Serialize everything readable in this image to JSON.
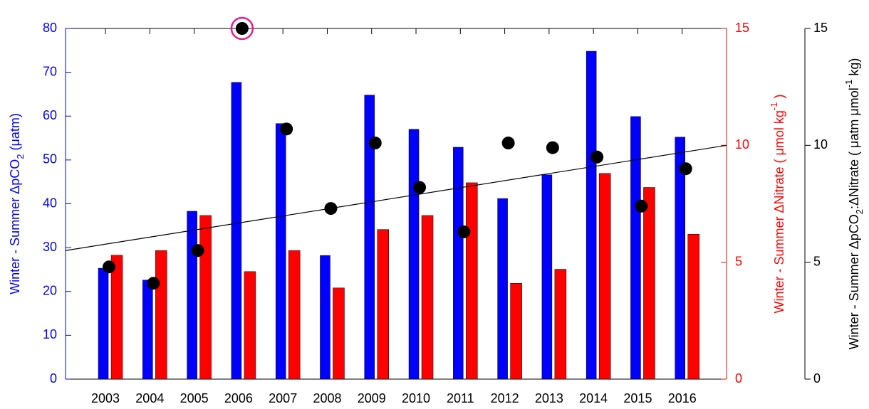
{
  "chart_data": {
    "type": "bar",
    "x": [
      2003,
      2004,
      2005,
      2006,
      2007,
      2008,
      2009,
      2010,
      2011,
      2012,
      2013,
      2014,
      2015,
      2016
    ],
    "xlim": [
      2002.1,
      2017
    ],
    "xticks": [
      2003,
      2004,
      2005,
      2006,
      2007,
      2008,
      2009,
      2010,
      2011,
      2012,
      2013,
      2014,
      2015,
      2016
    ],
    "ylim": [
      0,
      80
    ],
    "yticks": [
      0,
      10,
      20,
      30,
      40,
      50,
      60,
      70,
      80
    ],
    "y2lim": [
      0,
      15
    ],
    "y2ticks": [
      0,
      5,
      10,
      15
    ],
    "y3lim": [
      0,
      15
    ],
    "y3ticks": [
      0,
      5,
      10,
      15
    ],
    "ylabel": [
      {
        "text": "Winter - Summer  ΔpCO"
      },
      {
        "text": "2",
        "shift": "sub"
      },
      {
        "text": " (μatm)"
      }
    ],
    "y2label": [
      {
        "text": "Winter - Summer  ΔNitrate ( μmol kg"
      },
      {
        "text": "-1",
        "shift": "sup"
      },
      {
        "text": " )"
      }
    ],
    "y3label": [
      {
        "text": "Winter - Summer  ΔpCO"
      },
      {
        "text": "2",
        "shift": "sub"
      },
      {
        "text": ":ΔNitrate ( μatm μmol"
      },
      {
        "text": "-1",
        "shift": "sup"
      },
      {
        "text": " kg)"
      }
    ],
    "series": [
      {
        "color": "#0000ff",
        "axis": "y",
        "values": [
          25.3,
          22.6,
          38.3,
          67.7,
          58.3,
          28.2,
          64.8,
          57.0,
          52.9,
          41.2,
          46.6,
          74.8,
          59.9,
          55.2
        ]
      },
      {
        "color": "#ff0000",
        "axis": "y2",
        "values": [
          5.3,
          5.5,
          7.0,
          4.6,
          5.5,
          3.9,
          6.4,
          7.0,
          8.4,
          4.1,
          4.7,
          8.8,
          8.2,
          6.2
        ]
      },
      {
        "color": "#000000",
        "axis": "y3",
        "marker": "dot",
        "values": [
          4.8,
          4.1,
          5.5,
          15.0,
          10.7,
          7.3,
          10.1,
          8.2,
          6.3,
          10.1,
          9.9,
          9.5,
          7.4,
          9.0
        ]
      }
    ],
    "trend": {
      "x": [
        2002.1,
        2017
      ],
      "values": [
        5.5,
        10.0
      ],
      "color": "#000000"
    },
    "highlight": {
      "series": 2,
      "index": 3,
      "color": "#e0208f"
    }
  }
}
